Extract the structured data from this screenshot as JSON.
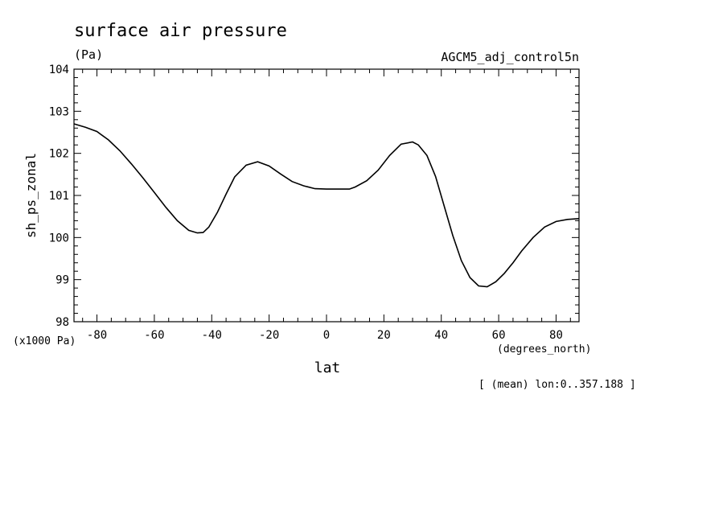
{
  "chart_data": {
    "type": "line",
    "title": "surface air pressure",
    "units": "(Pa)",
    "run_label": "AGCM5_adj_control5n",
    "ylabel": "sh_ps_zonal",
    "xlabel": "lat",
    "y_scale_label": "(x1000 Pa)",
    "x_units_label": "(degrees_north)",
    "footnote": "[ (mean) lon:0..357.188 ]",
    "xlim": [
      -88,
      88
    ],
    "ylim": [
      98,
      104
    ],
    "x_ticks": [
      -80,
      -60,
      -40,
      -20,
      0,
      20,
      40,
      60,
      80
    ],
    "x_tick_labels": [
      "-80",
      "-60",
      "-40",
      "-20",
      "0",
      "20",
      "40",
      "60",
      "80"
    ],
    "y_ticks": [
      98,
      99,
      100,
      101,
      102,
      103,
      104
    ],
    "y_tick_labels": [
      "98",
      "99",
      "100",
      "101",
      "102",
      "103",
      "104"
    ],
    "series": [
      {
        "x": [
          -88,
          -84,
          -80,
          -76,
          -72,
          -68,
          -64,
          -60,
          -56,
          -52,
          -48,
          -45,
          -43,
          -41,
          -38,
          -35,
          -32,
          -28,
          -24,
          -20,
          -16,
          -12,
          -8,
          -4,
          0,
          4,
          8,
          10,
          14,
          18,
          22,
          26,
          30,
          32,
          35,
          38,
          41,
          44,
          47,
          50,
          53,
          56,
          59,
          62,
          65,
          68,
          72,
          76,
          80,
          84,
          88
        ],
        "y": [
          102.7,
          102.62,
          102.52,
          102.32,
          102.06,
          101.75,
          101.42,
          101.07,
          100.72,
          100.4,
          100.17,
          100.11,
          100.12,
          100.25,
          100.6,
          101.03,
          101.44,
          101.72,
          101.8,
          101.7,
          101.51,
          101.33,
          101.23,
          101.16,
          101.15,
          101.15,
          101.15,
          101.2,
          101.35,
          101.6,
          101.95,
          102.22,
          102.27,
          102.2,
          101.95,
          101.45,
          100.75,
          100.05,
          99.45,
          99.05,
          98.85,
          98.83,
          98.95,
          99.15,
          99.4,
          99.68,
          100.0,
          100.25,
          100.38,
          100.43,
          100.45
        ]
      }
    ]
  }
}
